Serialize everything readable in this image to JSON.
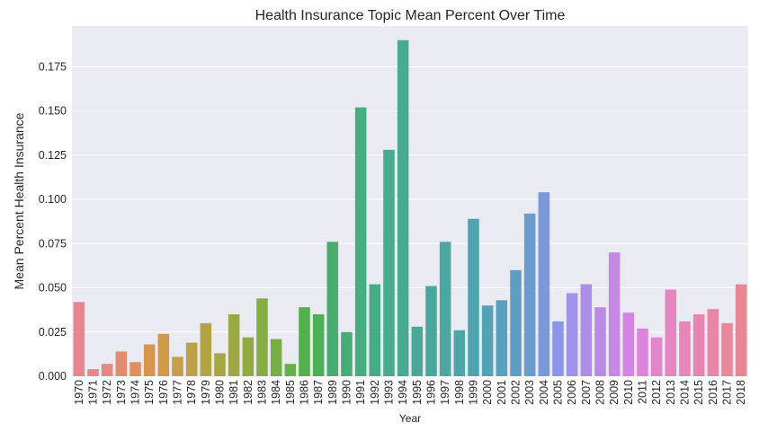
{
  "chart_data": {
    "type": "bar",
    "title": "Health Insurance Topic Mean Percent Over Time",
    "xlabel": "Year",
    "ylabel": "Mean Percent Health Insurance",
    "ylim": [
      0,
      0.198
    ],
    "yticks": [
      "0.000",
      "0.025",
      "0.050",
      "0.075",
      "0.100",
      "0.125",
      "0.150",
      "0.175"
    ],
    "grid": true,
    "categories": [
      "1970",
      "1971",
      "1972",
      "1973",
      "1974",
      "1975",
      "1976",
      "1977",
      "1978",
      "1979",
      "1980",
      "1981",
      "1982",
      "1983",
      "1984",
      "1985",
      "1986",
      "1987",
      "1989",
      "1990",
      "1991",
      "1992",
      "1993",
      "1994",
      "1995",
      "1996",
      "1997",
      "1998",
      "1999",
      "2000",
      "2001",
      "2002",
      "2003",
      "2004",
      "2005",
      "2006",
      "2007",
      "2008",
      "2009",
      "2010",
      "2011",
      "2012",
      "2013",
      "2014",
      "2015",
      "2016",
      "2017",
      "2018"
    ],
    "values": [
      0.042,
      0.004,
      0.007,
      0.014,
      0.008,
      0.018,
      0.024,
      0.011,
      0.019,
      0.03,
      0.013,
      0.035,
      0.022,
      0.044,
      0.021,
      0.007,
      0.039,
      0.035,
      0.076,
      0.025,
      0.152,
      0.052,
      0.128,
      0.19,
      0.028,
      0.051,
      0.076,
      0.026,
      0.089,
      0.04,
      0.043,
      0.06,
      0.092,
      0.104,
      0.031,
      0.047,
      0.052,
      0.039,
      0.07,
      0.036,
      0.027,
      0.022,
      0.049,
      0.031,
      0.035,
      0.038,
      0.03,
      0.052
    ],
    "colors": [
      "#e8868f",
      "#e7878c",
      "#e48a80",
      "#e18c70",
      "#e18f61",
      "#d89550",
      "#cf9a4a",
      "#c69e47",
      "#bca145",
      "#b2a443",
      "#a6a742",
      "#9ca842",
      "#91ab42",
      "#84ad44",
      "#76ae45",
      "#67b047",
      "#53b04d",
      "#4bb055",
      "#47ad6f",
      "#46ad77",
      "#47ad80",
      "#47ac86",
      "#48ab8c",
      "#48aa91",
      "#4aa996",
      "#4aa79c",
      "#4ca6a2",
      "#4ca5a7",
      "#4fa3ad",
      "#53a2b5",
      "#58a0bd",
      "#5e9ec5",
      "#6a9ccd",
      "#7b98d9",
      "#8f95e6",
      "#a192e9",
      "#ad8ee7",
      "#b98be5",
      "#c688e4",
      "#d285e2",
      "#dc84d8",
      "#e485cc",
      "#e585c1",
      "#e686b6",
      "#e786ad",
      "#e887a5",
      "#e8879c",
      "#e98693"
    ]
  }
}
